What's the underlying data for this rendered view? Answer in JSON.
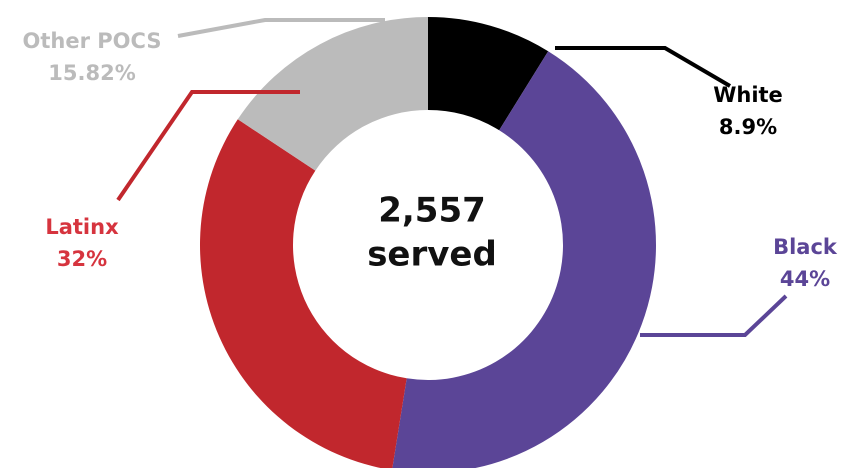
{
  "chart_data": {
    "type": "donut",
    "categories": [
      "White",
      "Black",
      "Latinx",
      "Other POCS"
    ],
    "values": [
      8.9,
      44,
      32,
      15.82
    ],
    "value_labels": [
      "8.9%",
      "44%",
      "32%",
      "15.82%"
    ],
    "colors": [
      "#000000",
      "#5b4597",
      "#c1272d",
      "#bbbbbb"
    ],
    "label_colors": [
      "#000000",
      "#5b4597",
      "#d6343e",
      "#bbbbbb"
    ],
    "center_text": "2,557",
    "center_subtext": "served"
  }
}
